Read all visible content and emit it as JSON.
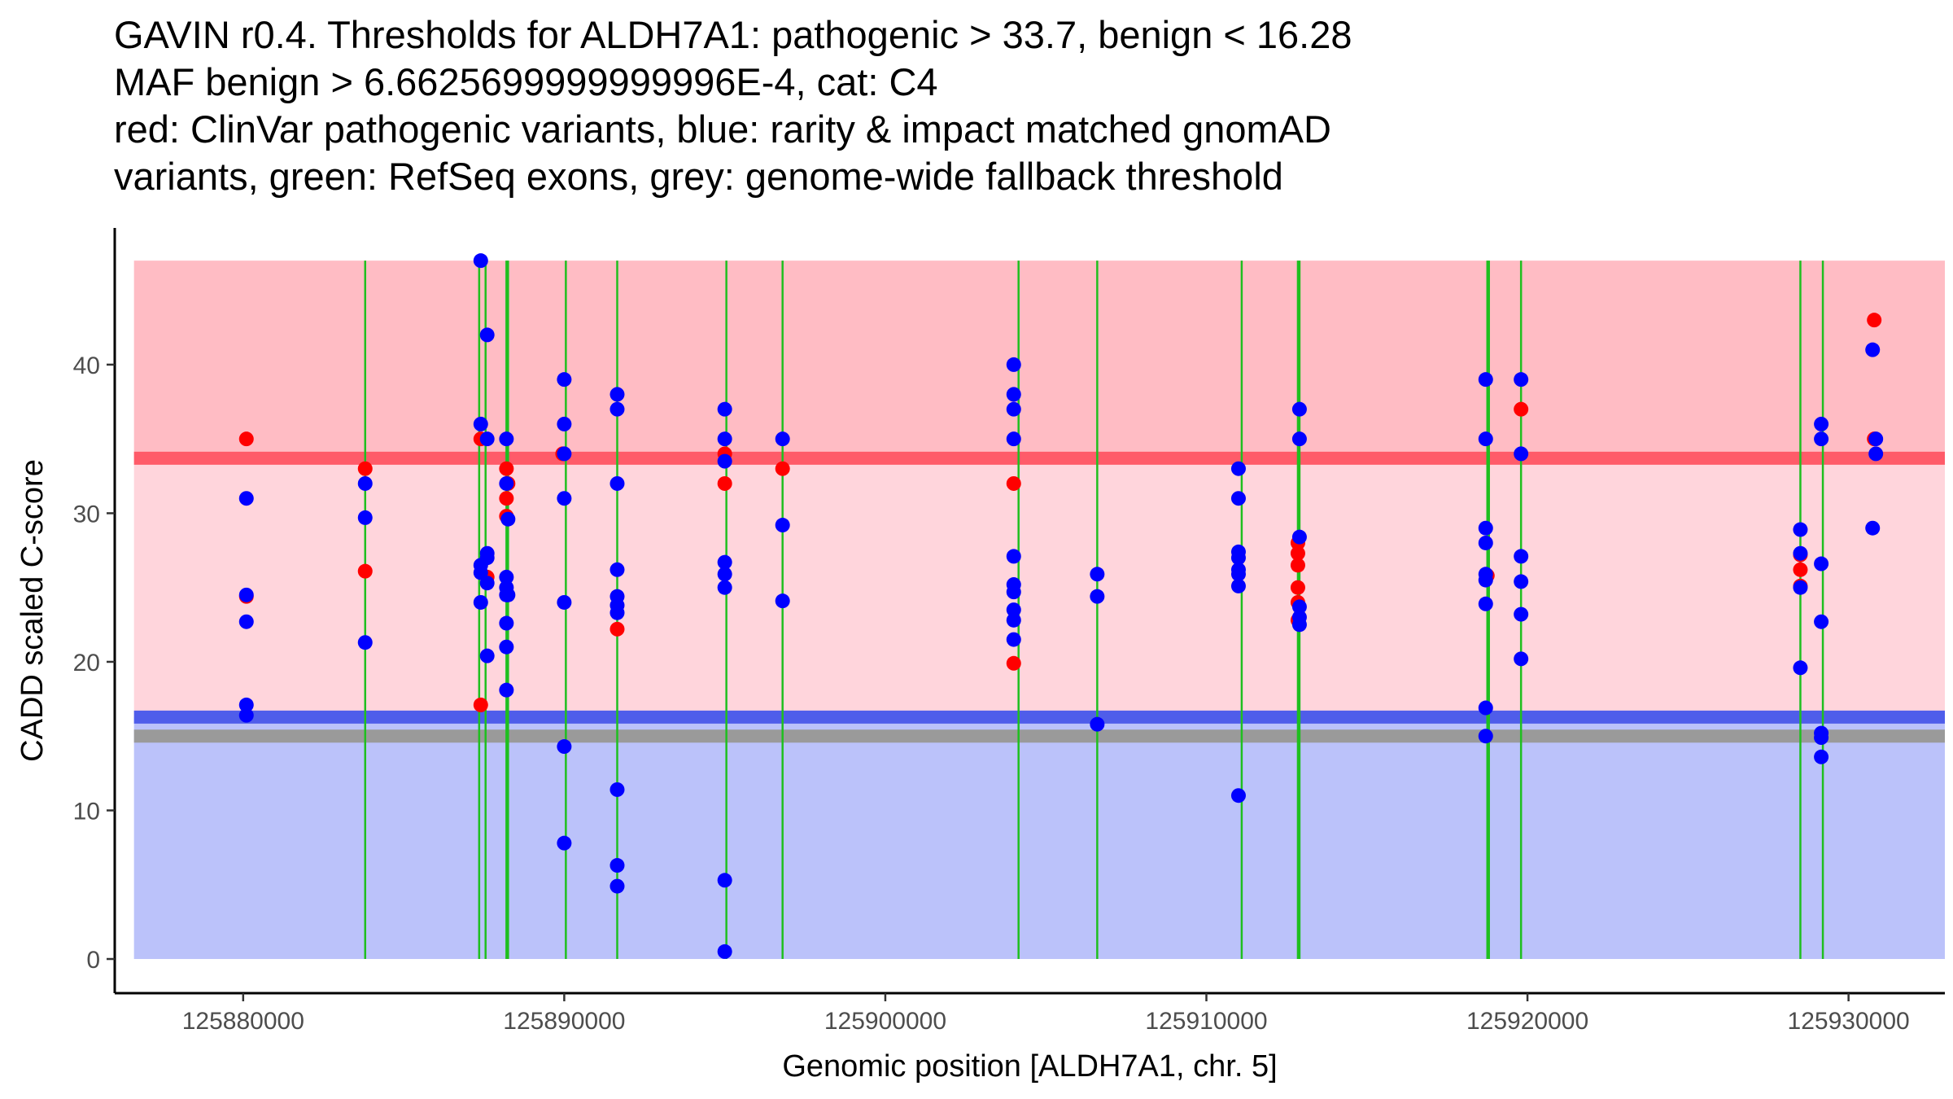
{
  "title": {
    "lines": [
      "GAVIN r0.4. Thresholds for ALDH7A1: pathogenic > 33.7, benign < 16.28",
      "MAF benign > 6.6625699999999996E-4, cat: C4",
      "red: ClinVar pathogenic variants, blue: rarity & impact matched gnomAD",
      "variants, green: RefSeq exons, grey: genome-wide fallback threshold"
    ]
  },
  "chart_data": {
    "type": "scatter",
    "xlabel": "Genomic position [ALDH7A1, chr. 5]",
    "ylabel": "CADD scaled C-score",
    "xlim": [
      125876000,
      125933000
    ],
    "ylim": [
      -2.3,
      49.2
    ],
    "xticks": [
      125880000,
      125890000,
      125900000,
      125910000,
      125920000,
      125930000
    ],
    "yticks": [
      0,
      10,
      20,
      30,
      40
    ],
    "colors": {
      "pathogenic_zone": "#ffbcc4",
      "vous_zone": "#ffd5dc",
      "benign_zone": "#bbc2fa",
      "pathogenic_threshold": "#ff5b69",
      "benign_threshold": "#4f5dea",
      "fallback_threshold": "#9a9a9a",
      "exon": "#1fbf1f",
      "clinvar": "#ff0000",
      "gnomad": "#0000ff"
    },
    "thresholds": {
      "pathogenic": 33.7,
      "benign": 16.28,
      "fallback": 15.0,
      "cadd_max": 47.0
    },
    "exons": [
      125883800,
      125887350,
      125887550,
      125888200,
      125888250,
      125890050,
      125891650,
      125895050,
      125896800,
      125904150,
      125906600,
      125911100,
      125912850,
      125912900,
      125918750,
      125918800,
      125919800,
      125928500,
      125929200
    ],
    "series": [
      {
        "name": "ClinVar pathogenic variants",
        "color": "#ff0000",
        "points": [
          [
            125880100,
            35.0
          ],
          [
            125880100,
            24.4
          ],
          [
            125883800,
            33.0
          ],
          [
            125883800,
            26.1
          ],
          [
            125887400,
            35.0
          ],
          [
            125887400,
            17.1
          ],
          [
            125887600,
            25.7
          ],
          [
            125888200,
            33.0
          ],
          [
            125888200,
            31.0
          ],
          [
            125888200,
            29.8
          ],
          [
            125888250,
            32.0
          ],
          [
            125889950,
            34.0
          ],
          [
            125891650,
            22.2
          ],
          [
            125895000,
            34.0
          ],
          [
            125895000,
            32.0
          ],
          [
            125896800,
            33.0
          ],
          [
            125904000,
            32.0
          ],
          [
            125904000,
            19.9
          ],
          [
            125912850,
            28.0
          ],
          [
            125912850,
            27.3
          ],
          [
            125912850,
            26.5
          ],
          [
            125912850,
            25.0
          ],
          [
            125912850,
            24.0
          ],
          [
            125912850,
            22.8
          ],
          [
            125918750,
            25.8
          ],
          [
            125919800,
            37.0
          ],
          [
            125928500,
            27.2
          ],
          [
            125928500,
            26.2
          ],
          [
            125928500,
            25.1
          ],
          [
            125930800,
            43.0
          ],
          [
            125930800,
            35.0
          ]
        ]
      },
      {
        "name": "rarity & impact matched gnomAD variants",
        "color": "#0000ff",
        "points": [
          [
            125880100,
            31.0
          ],
          [
            125880100,
            24.5
          ],
          [
            125880100,
            22.7
          ],
          [
            125880100,
            17.1
          ],
          [
            125880100,
            16.4
          ],
          [
            125883800,
            32.0
          ],
          [
            125883800,
            29.7
          ],
          [
            125883800,
            21.3
          ],
          [
            125887400,
            47.0
          ],
          [
            125887400,
            36.0
          ],
          [
            125887400,
            26.5
          ],
          [
            125887400,
            26.0
          ],
          [
            125887400,
            24.0
          ],
          [
            125887600,
            42.0
          ],
          [
            125887600,
            35.0
          ],
          [
            125887600,
            27.3
          ],
          [
            125887600,
            27.0
          ],
          [
            125887600,
            25.3
          ],
          [
            125887600,
            20.4
          ],
          [
            125888200,
            35.0
          ],
          [
            125888200,
            32.0
          ],
          [
            125888200,
            25.7
          ],
          [
            125888200,
            25.0
          ],
          [
            125888200,
            24.5
          ],
          [
            125888200,
            22.6
          ],
          [
            125888200,
            21.0
          ],
          [
            125888200,
            18.1
          ],
          [
            125888250,
            29.6
          ],
          [
            125888250,
            24.5
          ],
          [
            125890000,
            39.0
          ],
          [
            125890000,
            36.0
          ],
          [
            125890000,
            34.0
          ],
          [
            125890000,
            31.0
          ],
          [
            125890000,
            24.0
          ],
          [
            125890000,
            14.3
          ],
          [
            125890000,
            7.8
          ],
          [
            125891650,
            38.0
          ],
          [
            125891650,
            37.0
          ],
          [
            125891650,
            32.0
          ],
          [
            125891650,
            26.2
          ],
          [
            125891650,
            24.4
          ],
          [
            125891650,
            23.8
          ],
          [
            125891650,
            23.3
          ],
          [
            125891650,
            11.4
          ],
          [
            125891650,
            6.3
          ],
          [
            125891650,
            4.9
          ],
          [
            125895000,
            37.0
          ],
          [
            125895000,
            35.0
          ],
          [
            125895000,
            33.5
          ],
          [
            125895000,
            26.7
          ],
          [
            125895000,
            25.9
          ],
          [
            125895000,
            25.0
          ],
          [
            125895000,
            5.3
          ],
          [
            125895000,
            0.5
          ],
          [
            125896800,
            35.0
          ],
          [
            125896800,
            29.2
          ],
          [
            125896800,
            24.1
          ],
          [
            125904000,
            40.0
          ],
          [
            125904000,
            38.0
          ],
          [
            125904000,
            37.0
          ],
          [
            125904000,
            35.0
          ],
          [
            125904000,
            27.1
          ],
          [
            125904000,
            25.2
          ],
          [
            125904000,
            24.7
          ],
          [
            125904000,
            23.5
          ],
          [
            125904000,
            22.8
          ],
          [
            125904000,
            21.5
          ],
          [
            125906600,
            25.9
          ],
          [
            125906600,
            24.4
          ],
          [
            125906600,
            15.8
          ],
          [
            125911000,
            33.0
          ],
          [
            125911000,
            31.0
          ],
          [
            125911000,
            27.4
          ],
          [
            125911000,
            27.0
          ],
          [
            125911000,
            26.2
          ],
          [
            125911000,
            25.9
          ],
          [
            125911000,
            25.1
          ],
          [
            125911000,
            11.0
          ],
          [
            125912900,
            37.0
          ],
          [
            125912900,
            35.0
          ],
          [
            125912900,
            28.4
          ],
          [
            125912900,
            23.7
          ],
          [
            125912900,
            23.0
          ],
          [
            125912900,
            22.5
          ],
          [
            125918700,
            39.0
          ],
          [
            125918700,
            35.0
          ],
          [
            125918700,
            29.0
          ],
          [
            125918700,
            28.0
          ],
          [
            125918700,
            25.9
          ],
          [
            125918700,
            25.5
          ],
          [
            125918700,
            23.9
          ],
          [
            125918700,
            16.9
          ],
          [
            125918700,
            15.0
          ],
          [
            125919800,
            39.0
          ],
          [
            125919800,
            34.0
          ],
          [
            125919800,
            27.1
          ],
          [
            125919800,
            25.4
          ],
          [
            125919800,
            23.2
          ],
          [
            125919800,
            20.2
          ],
          [
            125928500,
            28.9
          ],
          [
            125928500,
            27.3
          ],
          [
            125928500,
            25.0
          ],
          [
            125928500,
            19.6
          ],
          [
            125929150,
            36.0
          ],
          [
            125929150,
            35.0
          ],
          [
            125929150,
            26.6
          ],
          [
            125929150,
            22.7
          ],
          [
            125929150,
            15.2
          ],
          [
            125929150,
            14.9
          ],
          [
            125929150,
            13.6
          ],
          [
            125930750,
            41.0
          ],
          [
            125930850,
            35.0
          ],
          [
            125930850,
            34.0
          ],
          [
            125930750,
            29.0
          ]
        ]
      }
    ]
  }
}
